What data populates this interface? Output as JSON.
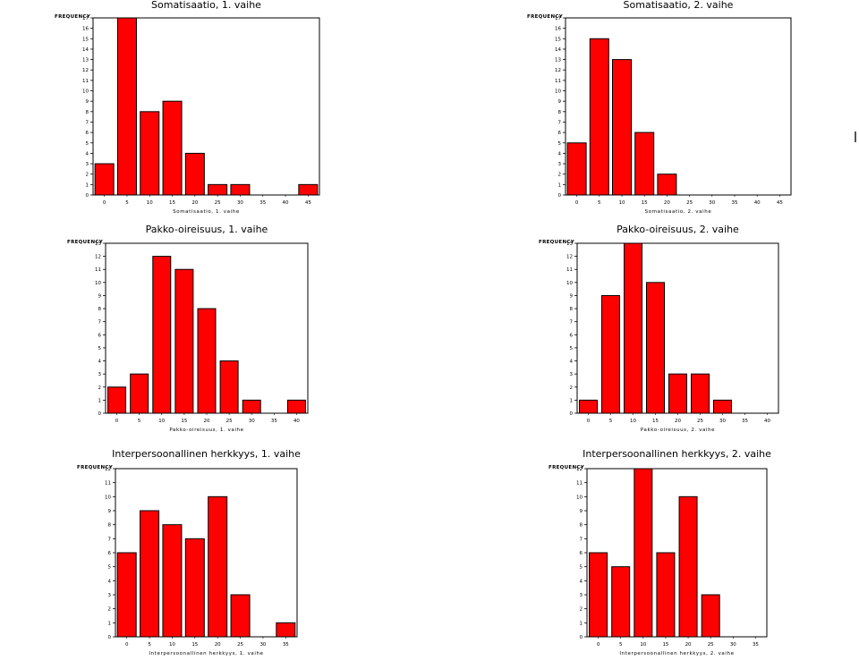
{
  "chart_data": [
    {
      "type": "bar",
      "title": "Somatisaatio, 1. vaihe",
      "ylabel": "FREQUENCY",
      "xlabel": "Somatisaatio, 1. vaihe",
      "categories": [
        "0",
        "5",
        "10",
        "15",
        "20",
        "25",
        "30",
        "35",
        "40",
        "45"
      ],
      "values": [
        3,
        17,
        8,
        9,
        4,
        1,
        1,
        0,
        0,
        1
      ],
      "ylim": [
        0,
        17
      ],
      "yticks": [
        "0",
        "1",
        "2",
        "3",
        "4",
        "5",
        "6",
        "7",
        "8",
        "9",
        "10",
        "11",
        "12",
        "13",
        "14",
        "15",
        "16",
        "17"
      ],
      "bar_color": "#ff0000"
    },
    {
      "type": "bar",
      "title": "Somatisaatio, 2. vaihe",
      "ylabel": "FREQUENCY",
      "xlabel": "Somatisaatio, 2. vaihe",
      "categories": [
        "0",
        "5",
        "10",
        "15",
        "20",
        "25",
        "30",
        "35",
        "40",
        "45"
      ],
      "values": [
        5,
        15,
        13,
        6,
        2,
        0,
        0,
        0,
        0,
        0
      ],
      "ylim": [
        0,
        17
      ],
      "yticks": [
        "0",
        "1",
        "2",
        "3",
        "4",
        "5",
        "6",
        "7",
        "8",
        "9",
        "10",
        "11",
        "12",
        "13",
        "14",
        "15",
        "16",
        "17"
      ],
      "bar_color": "#ff0000"
    },
    {
      "type": "bar",
      "title": "Pakko-oireisuus, 1. vaihe",
      "ylabel": "FREQUENCY",
      "xlabel": "Pakko-oireisuus, 1. vaihe",
      "categories": [
        "0",
        "5",
        "10",
        "15",
        "20",
        "25",
        "30",
        "35",
        "40"
      ],
      "values": [
        2,
        3,
        12,
        11,
        8,
        4,
        1,
        0,
        1
      ],
      "ylim": [
        0,
        13
      ],
      "yticks": [
        "0",
        "1",
        "2",
        "3",
        "4",
        "5",
        "6",
        "7",
        "8",
        "9",
        "10",
        "11",
        "12",
        "13"
      ],
      "bar_color": "#ff0000"
    },
    {
      "type": "bar",
      "title": "Pakko-oireisuus, 2. vaihe",
      "ylabel": "FREQUENCY",
      "xlabel": "Pakko-oireisuus, 2. vaihe",
      "categories": [
        "0",
        "5",
        "10",
        "15",
        "20",
        "25",
        "30",
        "35",
        "40"
      ],
      "values": [
        1,
        9,
        13,
        10,
        3,
        3,
        1,
        0,
        0
      ],
      "ylim": [
        0,
        13
      ],
      "yticks": [
        "0",
        "1",
        "2",
        "3",
        "4",
        "5",
        "6",
        "7",
        "8",
        "9",
        "10",
        "11",
        "12",
        "13"
      ],
      "bar_color": "#ff0000"
    },
    {
      "type": "bar",
      "title": "Interpersoonallinen herkkyys, 1. vaihe",
      "ylabel": "FREQUENCY",
      "xlabel": "Interpersoonallinen herkkyys, 1. vaihe",
      "categories": [
        "0",
        "5",
        "10",
        "15",
        "20",
        "25",
        "30",
        "35"
      ],
      "values": [
        6,
        9,
        8,
        7,
        10,
        3,
        0,
        1
      ],
      "ylim": [
        0,
        12
      ],
      "yticks": [
        "0",
        "1",
        "2",
        "3",
        "4",
        "5",
        "6",
        "7",
        "8",
        "9",
        "10",
        "11",
        "12"
      ],
      "bar_color": "#ff0000"
    },
    {
      "type": "bar",
      "title": "Interpersoonallinen herkkyys, 2. vaihe",
      "ylabel": "FREQUENCY",
      "xlabel": "Interpersoonallinen herkkyys, 2. vaihe",
      "categories": [
        "0",
        "5",
        "10",
        "15",
        "20",
        "25",
        "30",
        "35"
      ],
      "values": [
        6,
        5,
        12,
        6,
        10,
        3,
        0,
        0
      ],
      "ylim": [
        0,
        12
      ],
      "yticks": [
        "0",
        "1",
        "2",
        "3",
        "4",
        "5",
        "6",
        "7",
        "8",
        "9",
        "10",
        "11",
        "12"
      ],
      "bar_color": "#ff0000"
    }
  ]
}
